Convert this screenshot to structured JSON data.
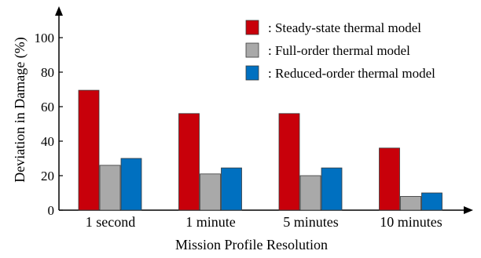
{
  "chart_data": {
    "type": "bar",
    "title": "",
    "xlabel": "Mission Profile Resolution",
    "ylabel": "Deviation in Damage (%)",
    "ylim": [
      0,
      110
    ],
    "yticks": [
      "0",
      "20",
      "40",
      "60",
      "80",
      "100"
    ],
    "grid": false,
    "legend_position": "top-right",
    "categories": [
      "1 second",
      "1 minute",
      "5 minutes",
      "10 minutes"
    ],
    "series": [
      {
        "name": ": Steady-state thermal model",
        "color": "#c8000a",
        "values": [
          69.5,
          56,
          56,
          36
        ]
      },
      {
        "name": ": Full-order thermal model",
        "color": "#a9a9a9",
        "values": [
          26,
          21,
          20,
          8
        ]
      },
      {
        "name": ": Reduced-order thermal model",
        "color": "#0070c0",
        "values": [
          30,
          24.5,
          24.5,
          10
        ]
      }
    ]
  }
}
